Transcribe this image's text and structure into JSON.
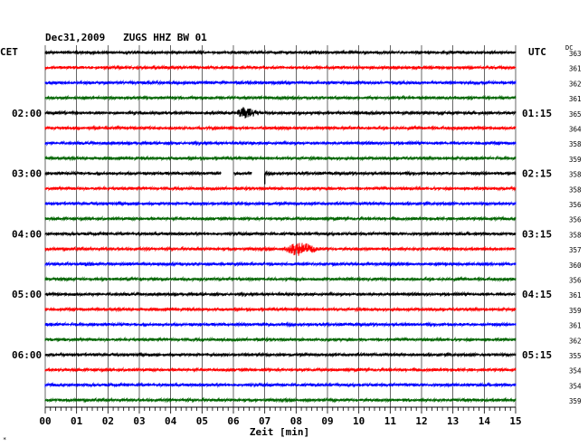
{
  "header": {
    "title": "Dec31,2009   ZUGS HHZ BW 01",
    "left_tz": "CET",
    "right_tz": "UTC",
    "dc_label": "DC"
  },
  "colors": {
    "trace_cycle": [
      "#000000",
      "#ff0000",
      "#0000ff",
      "#006400"
    ],
    "grid": "#000000",
    "event_red": "#ff0000"
  },
  "chart_data": {
    "type": "line",
    "title": "Dec31,2009   ZUGS HHZ BW 01",
    "xlabel": "Zeit [min]",
    "xlim": [
      0,
      15
    ],
    "x_ticks": [
      "00",
      "01",
      "02",
      "03",
      "04",
      "05",
      "06",
      "07",
      "08",
      "09",
      "10",
      "11",
      "12",
      "13",
      "14",
      "15"
    ],
    "grid": true,
    "trace_count": 24,
    "left_time_labels": [
      {
        "trace": 4,
        "label": "02:00"
      },
      {
        "trace": 8,
        "label": "03:00"
      },
      {
        "trace": 12,
        "label": "04:00"
      },
      {
        "trace": 16,
        "label": "05:00"
      },
      {
        "trace": 20,
        "label": "06:00"
      }
    ],
    "right_time_labels": [
      {
        "trace": 4,
        "label": "01:15"
      },
      {
        "trace": 8,
        "label": "02:15"
      },
      {
        "trace": 12,
        "label": "03:15"
      },
      {
        "trace": 16,
        "label": "04:15"
      },
      {
        "trace": 20,
        "label": "05:15"
      }
    ],
    "dc_offsets": [
      "363",
      "361",
      "362",
      "361",
      "365",
      "364",
      "358",
      "359",
      "358",
      "358",
      "356",
      "356",
      "358",
      "357",
      "360",
      "356",
      "361",
      "359",
      "361",
      "362",
      "355",
      "354",
      "354",
      "359"
    ],
    "events": [
      {
        "trace": 4,
        "start_min": 6.0,
        "end_min": 7.0,
        "peak_amplitude": 8,
        "color": "#000000"
      },
      {
        "trace": 13,
        "start_min": 7.5,
        "end_min": 9.0,
        "peak_amplitude": 9,
        "color": "#ff0000"
      },
      {
        "trace": 14,
        "start_min": 0.9,
        "end_min": 2.0,
        "peak_amplitude": 3,
        "color": "#0000ff"
      }
    ],
    "gaps": [
      {
        "trace": 8,
        "start_min": 5.6,
        "end_min": 6.0
      },
      {
        "trace": 8,
        "start_min": 6.6,
        "end_min": 7.0
      }
    ],
    "spike": {
      "trace": 8,
      "at_min": 7.0,
      "depth": 12
    }
  },
  "footer": {
    "corner_mark": "*"
  }
}
